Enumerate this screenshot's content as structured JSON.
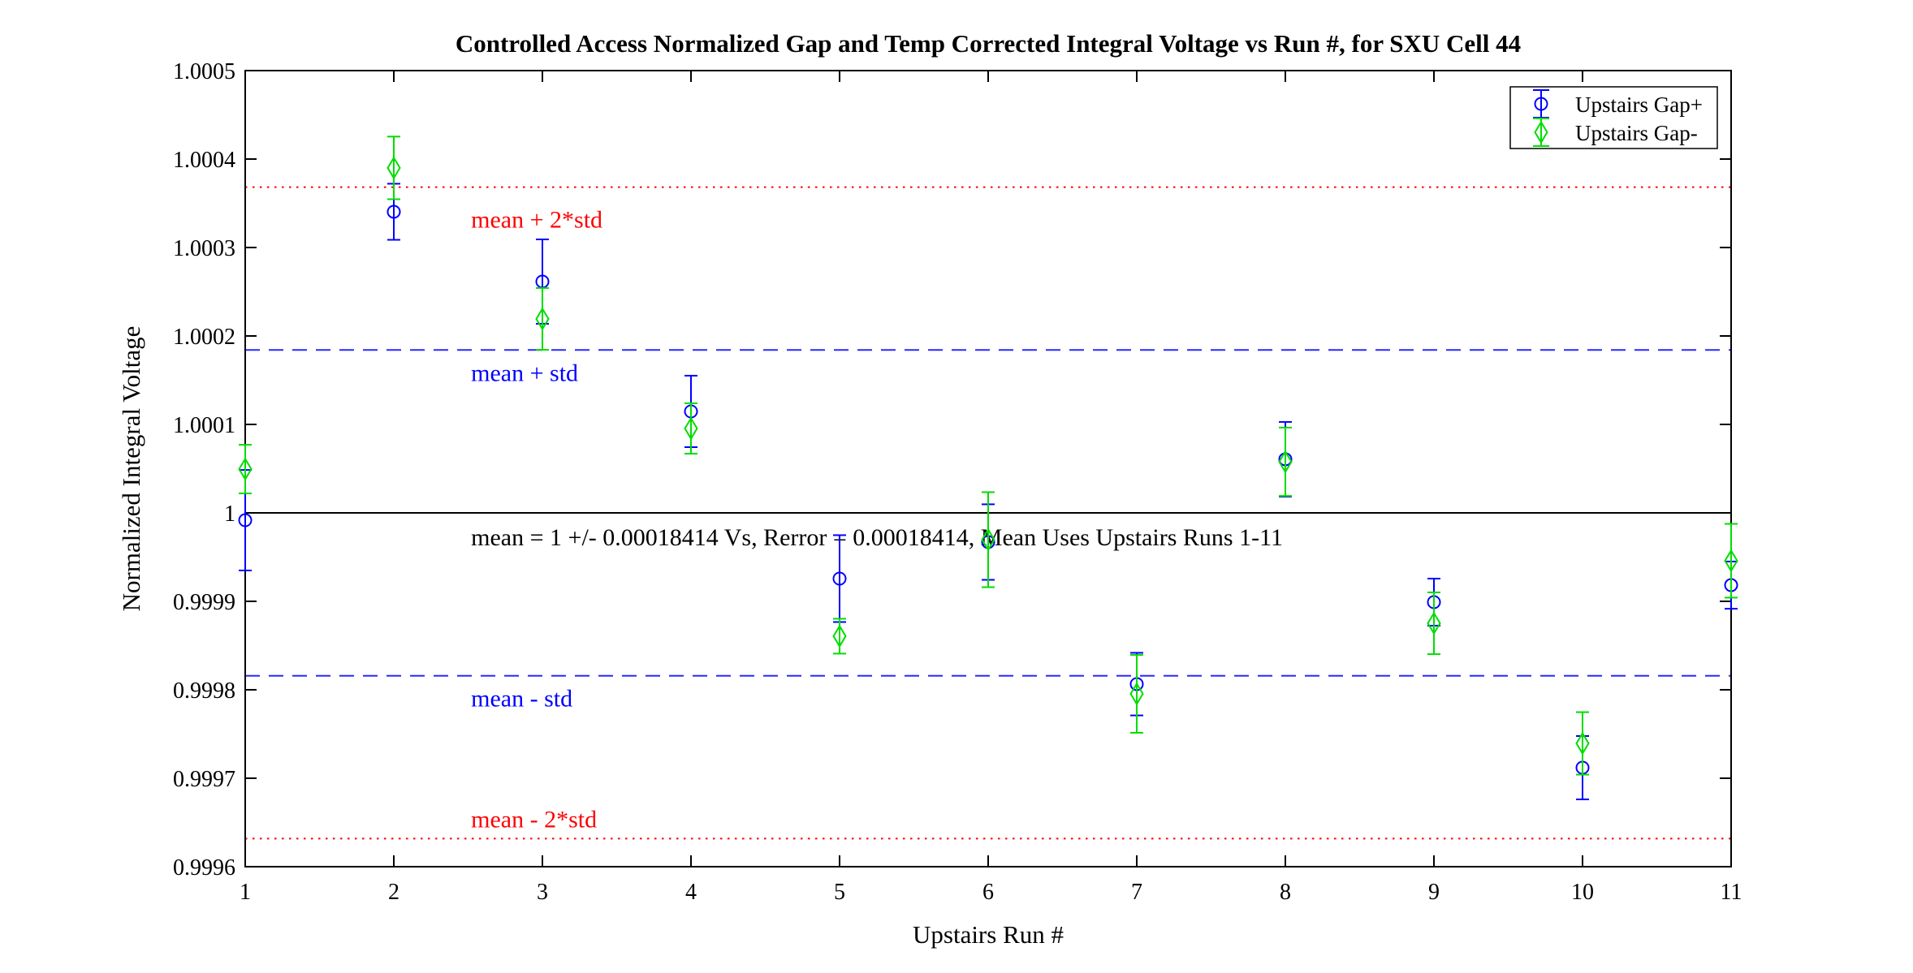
{
  "chart_data": {
    "type": "scatter",
    "subtype": "errorbar",
    "title": "Controlled Access Normalized Gap and Temp Corrected Integral Voltage vs Run #, for SXU Cell 44",
    "xlabel": "Upstairs Run #",
    "ylabel": "Normalized Integral Voltage",
    "xlim": [
      1,
      11
    ],
    "ylim": [
      0.9996,
      1.0005
    ],
    "grid": false,
    "xticks": [
      1,
      2,
      3,
      4,
      5,
      6,
      7,
      8,
      9,
      10,
      11
    ],
    "xtick_labels": [
      "1",
      "2",
      "3",
      "4",
      "5",
      "6",
      "7",
      "8",
      "9",
      "10",
      "11"
    ],
    "yticks": [
      0.9996,
      0.9997,
      0.9998,
      0.9999,
      1.0,
      1.0001,
      1.0002,
      1.0003,
      1.0004,
      1.0005
    ],
    "ytick_labels": [
      "0.9996",
      "0.9997",
      "0.9998",
      "0.9999",
      "1",
      "1.0001",
      "1.0002",
      "1.0003",
      "1.0004",
      "1.0005"
    ],
    "x": [
      1,
      2,
      3,
      4,
      5,
      6,
      7,
      8,
      9,
      10,
      11
    ],
    "series": [
      {
        "name": "Upstairs Gap+",
        "marker": "circle",
        "color": "#0000ff",
        "values": [
          0.9999917,
          1.0003404,
          1.0002615,
          1.0001147,
          0.9999257,
          0.999967,
          0.9998064,
          1.0000606,
          0.9998991,
          0.9997119,
          0.9999183
        ],
        "errors": [
          5.68e-05,
          3.17e-05,
          4.77e-05,
          4.04e-05,
          4.91e-05,
          4.27e-05,
          3.54e-05,
          4.22e-05,
          2.66e-05,
          3.58e-05,
          2.67e-05
        ]
      },
      {
        "name": "Upstairs Gap-",
        "marker": "diamond",
        "color": "#00dd00",
        "values": [
          1.0000495,
          1.00039,
          1.0002193,
          1.0000954,
          0.9998606,
          0.9999697,
          0.9997954,
          1.0000578,
          0.9998752,
          0.9997394,
          0.9999459
        ],
        "errors": [
          2.75e-05,
          3.54e-05,
          3.49e-05,
          2.85e-05,
          1.97e-05,
          5.37e-05,
          4.4e-05,
          3.86e-05,
          3.49e-05,
          3.53e-05,
          4.17e-05
        ]
      }
    ],
    "mean": 1,
    "std": 0.00018414,
    "reference_lines": [
      {
        "id": "mean-plus-2std",
        "label": "mean + 2*std",
        "value": 1.00036828,
        "line_style": "dotted",
        "color": "#ff0000",
        "label_color": "#ff0000",
        "label_dy": 50
      },
      {
        "id": "mean-plus-std",
        "label": "mean + std",
        "value": 1.00018414,
        "line_style": "dashed",
        "color": "#2929ff",
        "label_color": "#0000ff",
        "label_dy": 38
      },
      {
        "id": "mean",
        "label": "",
        "value": 1.0,
        "line_style": "solid",
        "color": "#000000",
        "label_color": "#000000",
        "label_dy": 0
      },
      {
        "id": "mean-minus-std",
        "label": "mean - std",
        "value": 0.99981586,
        "line_style": "dashed",
        "color": "#2929ff",
        "label_color": "#0000ff",
        "label_dy": 38
      },
      {
        "id": "mean-minus-2std",
        "label": "mean - 2*std",
        "value": 0.99963172,
        "line_style": "dotted",
        "color": "#ff0000",
        "label_color": "#ff0000",
        "label_dy": -14
      }
    ],
    "annotations": [
      {
        "id": "mean-annotation",
        "text": "mean = 1 +/- 0.00018414 Vs, Rerror = 0.00018414, Mean Uses Upstairs Runs 1-11",
        "color": "#000000",
        "attach_value": 1.0,
        "dy": 40
      }
    ],
    "legend": {
      "position": "top-right",
      "entries": [
        {
          "label": "Upstairs Gap+",
          "marker": "circle",
          "color": "#0000ff"
        },
        {
          "label": "Upstairs Gap-",
          "marker": "diamond",
          "color": "#00dd00"
        }
      ]
    },
    "label_x_frac": 0.152
  }
}
